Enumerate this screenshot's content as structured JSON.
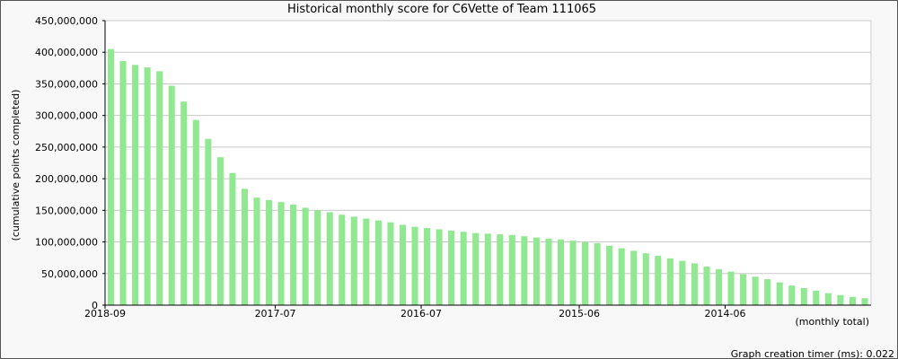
{
  "chart_data": {
    "type": "bar",
    "title": "Historical monthly score for C6Vette of Team 111065",
    "ylabel": "(cumulative points completed)",
    "xlabel": "(monthly total)",
    "ylim": [
      0,
      450000000
    ],
    "y_ticks": [
      "0",
      "50,000,000",
      "100,000,000",
      "150,000,000",
      "200,000,000",
      "250,000,000",
      "300,000,000",
      "350,000,000",
      "400,000,000",
      "450,000,000"
    ],
    "x_tick_labels": [
      "2018-09",
      "2017-07",
      "2016-07",
      "2015-06",
      "2014-06"
    ],
    "grid": true,
    "bar_color": "#90e890",
    "categories": [
      "2018-09",
      "2018-08",
      "2018-07",
      "2018-06",
      "2018-05",
      "2018-04",
      "2018-03",
      "2018-02",
      "2018-01",
      "2017-12",
      "2017-11",
      "2017-10",
      "2017-09",
      "2017-08",
      "2017-07",
      "2017-06",
      "2017-05",
      "2017-04",
      "2017-03",
      "2017-02",
      "2017-01",
      "2016-12",
      "2016-11",
      "2016-10",
      "2016-09",
      "2016-08",
      "2016-07",
      "2016-06",
      "2016-05",
      "2016-04",
      "2016-03",
      "2016-02",
      "2016-01",
      "2015-12",
      "2015-11",
      "2015-10",
      "2015-09",
      "2015-08",
      "2015-07",
      "2015-06",
      "2015-05",
      "2015-04",
      "2015-03",
      "2015-02",
      "2015-01",
      "2014-12",
      "2014-11",
      "2014-10",
      "2014-09",
      "2014-08",
      "2014-07",
      "2014-06",
      "2014-05",
      "2014-04",
      "2014-03",
      "2014-02",
      "2014-01",
      "2013-12",
      "2013-11",
      "2013-10",
      "2013-09",
      "2013-08",
      "2013-07"
    ],
    "values": [
      405000000,
      386000000,
      380000000,
      376000000,
      370000000,
      347000000,
      322000000,
      293000000,
      263000000,
      234000000,
      209000000,
      184000000,
      170000000,
      166000000,
      163000000,
      159000000,
      154000000,
      150000000,
      147000000,
      143000000,
      140000000,
      137000000,
      134000000,
      131000000,
      127000000,
      124000000,
      122000000,
      120000000,
      118000000,
      116000000,
      114000000,
      113000000,
      112000000,
      111000000,
      109000000,
      107000000,
      105000000,
      104000000,
      102000000,
      100000000,
      98000000,
      94000000,
      90000000,
      86000000,
      82000000,
      78000000,
      74000000,
      70000000,
      66000000,
      61000000,
      57000000,
      53000000,
      49000000,
      45000000,
      41000000,
      36000000,
      31000000,
      27000000,
      23000000,
      19000000,
      16000000,
      13000000,
      11000000
    ]
  },
  "footer": "Graph creation timer (ms): 0.022"
}
